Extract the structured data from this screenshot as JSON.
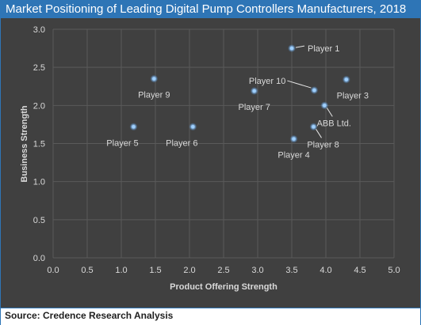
{
  "header": {
    "title": "Market Positioning of Leading Digital Pump Controllers Manufacturers, 2018"
  },
  "footer": {
    "source": "Source: Credence Research Analysis"
  },
  "colors": {
    "title_bg": "#2e75b6",
    "plot_bg": "#404040",
    "grid": "#5a5a5a",
    "text": "#d9d9d9",
    "point": "#6fb7ff",
    "point_glow": "#9fd0ff",
    "leader": "#e6e6e6"
  },
  "chart_data": {
    "type": "scatter",
    "title": "Market Positioning of Leading Digital Pump Controllers Manufacturers, 2018",
    "xlabel": "Product Offering Strength",
    "ylabel": "Business  Strength",
    "xlim": [
      0,
      5
    ],
    "ylim": [
      0,
      3
    ],
    "x_ticks": [
      "0.0",
      "0.5",
      "1.0",
      "1.5",
      "2.0",
      "2.5",
      "3.0",
      "3.5",
      "4.0",
      "4.5",
      "5.0"
    ],
    "y_ticks": [
      "0.0",
      "0.5",
      "1.0",
      "1.5",
      "2.0",
      "2.5",
      "3.0"
    ],
    "grid": true,
    "points": [
      {
        "label": "Player 1",
        "x": 3.5,
        "y": 2.75,
        "label_pos": "right-leader"
      },
      {
        "label": "Player 9",
        "x": 1.48,
        "y": 2.35,
        "label_pos": "below"
      },
      {
        "label": "Player 10",
        "x": 3.83,
        "y": 2.2,
        "label_pos": "left-leader"
      },
      {
        "label": "Player 3",
        "x": 4.3,
        "y": 2.34,
        "label_pos": "below-right"
      },
      {
        "label": "Player 7",
        "x": 2.95,
        "y": 2.19,
        "label_pos": "below"
      },
      {
        "label": "ABB Ltd.",
        "x": 3.98,
        "y": 2.0,
        "label_pos": "below-right-leader"
      },
      {
        "label": "Player 5",
        "x": 1.18,
        "y": 1.72,
        "label_pos": "below-left"
      },
      {
        "label": "Player 6",
        "x": 2.05,
        "y": 1.72,
        "label_pos": "below-left"
      },
      {
        "label": "Player 4",
        "x": 3.53,
        "y": 1.56,
        "label_pos": "below"
      },
      {
        "label": "Player 8",
        "x": 3.82,
        "y": 1.72,
        "label_pos": "below-right-leader"
      }
    ]
  }
}
